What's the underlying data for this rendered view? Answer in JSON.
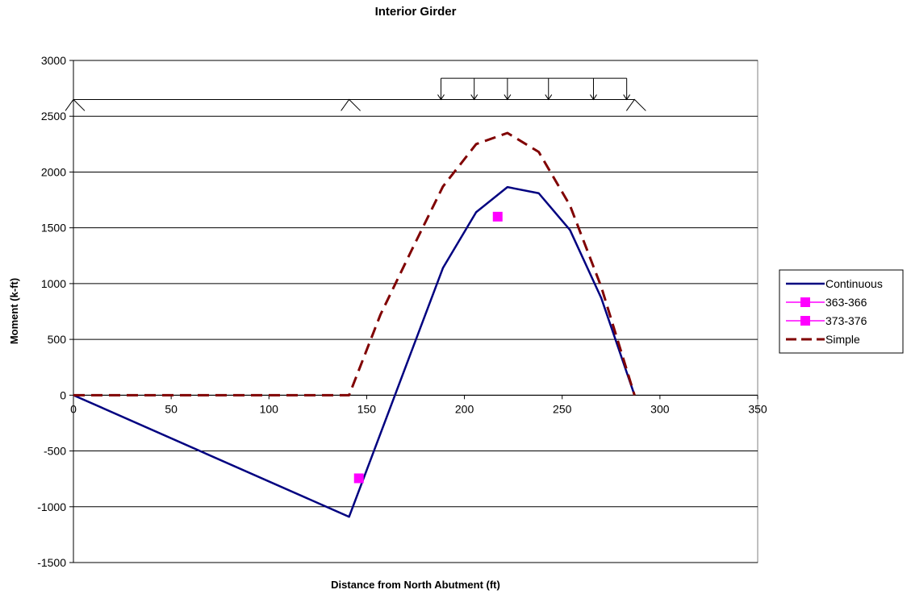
{
  "chart_data": {
    "type": "line",
    "title": "Interior Girder",
    "xlabel": "Distance from North Abutment (ft)",
    "ylabel": "Moment (k-ft)",
    "xlim": [
      0,
      350
    ],
    "ylim": [
      -1500,
      3000
    ],
    "xticks": [
      0,
      50,
      100,
      150,
      200,
      250,
      300,
      350
    ],
    "yticks": [
      3000,
      2500,
      2000,
      1500,
      1000,
      500,
      0,
      -500,
      -1000,
      -1500
    ],
    "grid": "horizontal major gridlines",
    "legend_position": "right",
    "series": [
      {
        "name": "Continuous",
        "style": "solid",
        "color": "#000080",
        "x": [
          0,
          141,
          189,
          206,
          222,
          238,
          254,
          270,
          287
        ],
        "y": [
          0,
          -1090,
          1140,
          1640,
          1865,
          1810,
          1480,
          870,
          0
        ]
      },
      {
        "name": "363-366",
        "style": "marker",
        "color": "#ff00ff",
        "x": [
          146
        ],
        "y": [
          -745
        ]
      },
      {
        "name": "373-376",
        "style": "marker",
        "color": "#ff00ff",
        "x": [
          217
        ],
        "y": [
          1600
        ]
      },
      {
        "name": "Simple",
        "style": "dashed",
        "color": "#800000",
        "x": [
          0,
          141,
          157,
          173,
          189,
          206,
          222,
          238,
          254,
          270,
          287
        ],
        "y": [
          0,
          0,
          720,
          1300,
          1870,
          2250,
          2350,
          2180,
          1700,
          970,
          0
        ]
      }
    ],
    "diagram": {
      "beam_y": 2650,
      "supports_x": [
        0,
        141,
        287
      ],
      "load_start_x": 188,
      "load_end_x": 283,
      "load_top_y": 2840,
      "arrows_x": [
        188,
        205,
        222,
        243,
        266,
        283
      ]
    }
  }
}
